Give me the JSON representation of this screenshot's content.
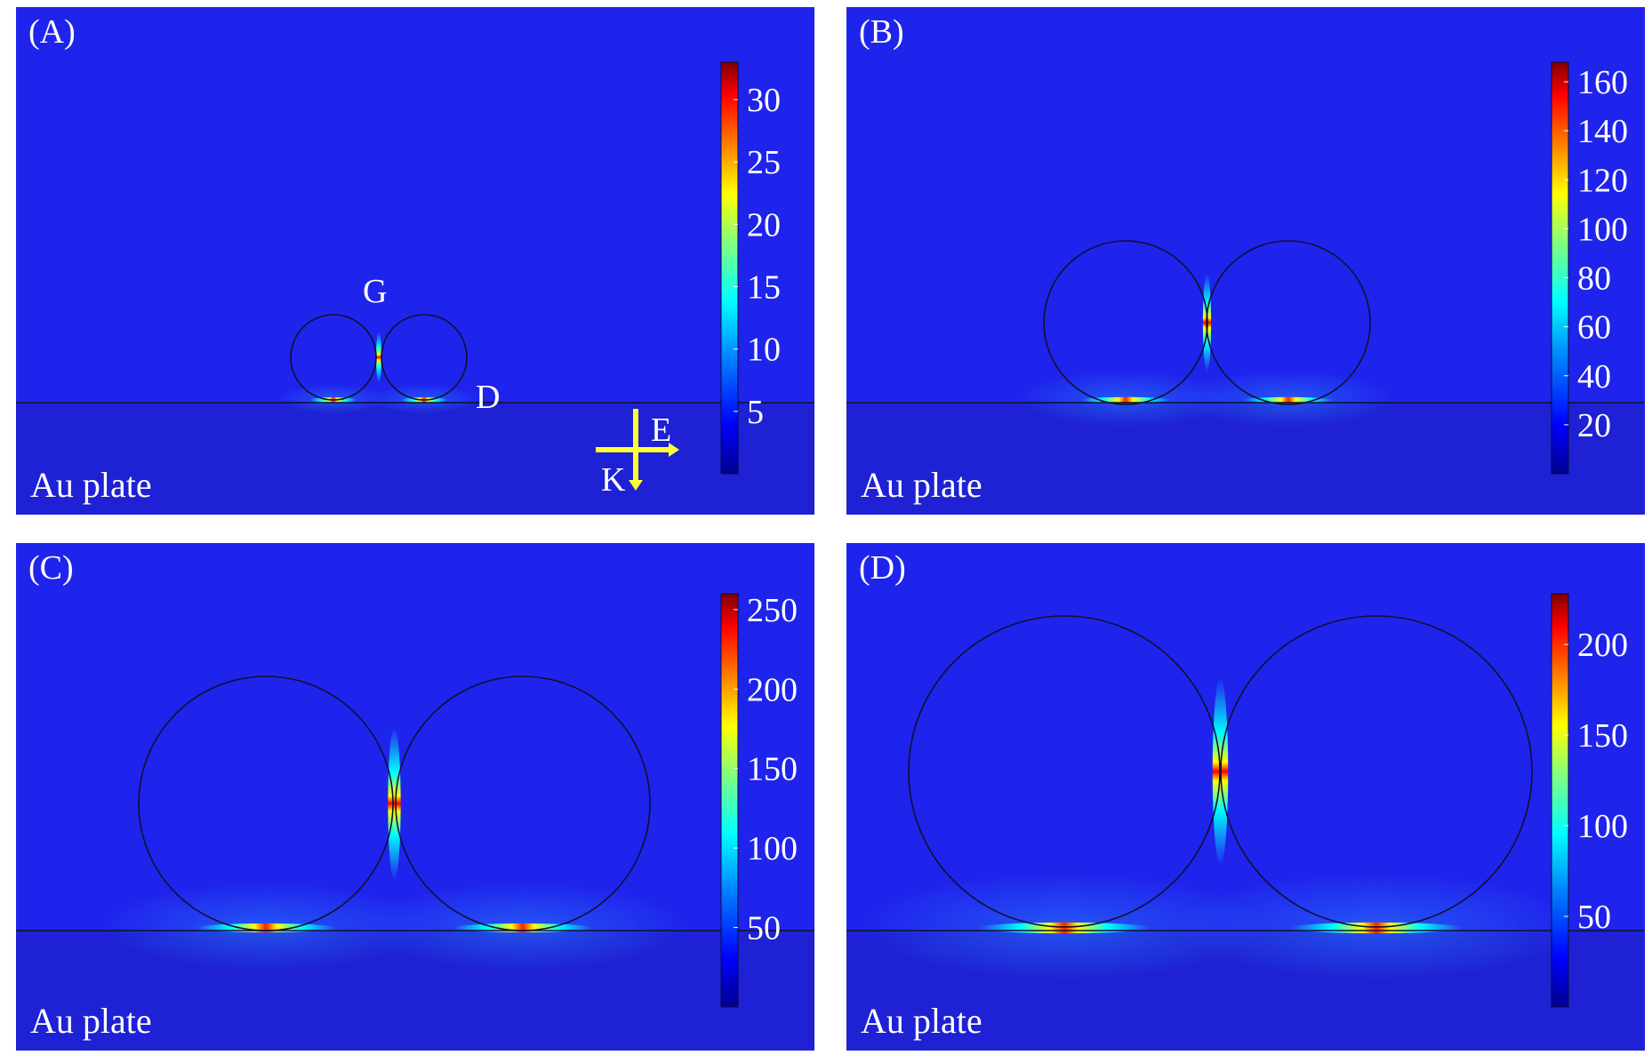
{
  "colors": {
    "background_field": "#1f24ec",
    "plate_field": "#1e21d4",
    "colormap": [
      "#00008f",
      "#0000ff",
      "#0080ff",
      "#00ffff",
      "#80ff80",
      "#ffff00",
      "#ff8000",
      "#ff0000",
      "#800000"
    ],
    "arrow": "#ffff33",
    "label_text": "#ffffff",
    "outline": "#101030"
  },
  "panels": [
    {
      "id": "A",
      "label": "(A)",
      "plate_label": "Au plate",
      "colorbar_ticks": [
        "30",
        "25",
        "20",
        "15",
        "10",
        "5"
      ],
      "colorbar_values": [
        30,
        25,
        20,
        15,
        10,
        5
      ],
      "colorbar_max": 33,
      "markers": {
        "gap": "G",
        "diameter": "D"
      },
      "axes_legend": {
        "field": "E",
        "wavevector": "K"
      }
    },
    {
      "id": "B",
      "label": "(B)",
      "plate_label": "Au plate",
      "colorbar_ticks": [
        "160",
        "140",
        "120",
        "100",
        "80",
        "60",
        "40",
        "20"
      ],
      "colorbar_values": [
        160,
        140,
        120,
        100,
        80,
        60,
        40,
        20
      ],
      "colorbar_max": 168
    },
    {
      "id": "C",
      "label": "(C)",
      "plate_label": "Au plate",
      "colorbar_ticks": [
        "250",
        "200",
        "150",
        "100",
        "50"
      ],
      "colorbar_values": [
        250,
        200,
        150,
        100,
        50
      ],
      "colorbar_max": 260
    },
    {
      "id": "D",
      "label": "(D)",
      "plate_label": "Au plate",
      "colorbar_ticks": [
        "200",
        "150",
        "100",
        "50"
      ],
      "colorbar_values": [
        200,
        150,
        100,
        50
      ],
      "colorbar_max": 228
    }
  ]
}
